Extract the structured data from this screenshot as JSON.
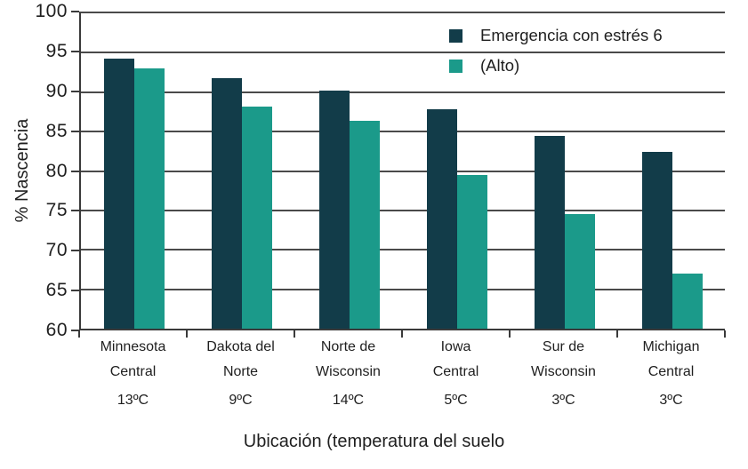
{
  "chart_data": {
    "type": "bar",
    "title": "",
    "xlabel": "Ubicación (temperatura del suelo",
    "ylabel": "% Nascencia",
    "ylim": [
      60,
      100
    ],
    "yticks": [
      100,
      95,
      90,
      85,
      80,
      75,
      70,
      65,
      60
    ],
    "grid": "horizontal",
    "legend_position": "top-right",
    "categories": [
      {
        "lines": [
          "Minnesota",
          "Central"
        ],
        "temp": "13ºC"
      },
      {
        "lines": [
          "Dakota del",
          "Norte"
        ],
        "temp": "9ºC"
      },
      {
        "lines": [
          "Norte de",
          "Wisconsin"
        ],
        "temp": "14ºC"
      },
      {
        "lines": [
          "Iowa",
          "Central"
        ],
        "temp": "5ºC"
      },
      {
        "lines": [
          "Sur de",
          "Wisconsin"
        ],
        "temp": "3ºC"
      },
      {
        "lines": [
          "Michigan",
          "Central"
        ],
        "temp": "3ºC"
      }
    ],
    "series": [
      {
        "name": "Emergencia con estrés 6",
        "color": "#123c49",
        "values": [
          94.3,
          91.8,
          90.2,
          87.8,
          84.4,
          82.4
        ]
      },
      {
        "name": "(Alto)",
        "color": "#1b9a8a",
        "values": [
          93.0,
          88.2,
          86.4,
          79.5,
          74.5,
          67.0
        ]
      }
    ],
    "colors": {
      "grid": "#4a4a4a",
      "axis": "#3a3a3a",
      "text": "#1f1f1f"
    }
  }
}
